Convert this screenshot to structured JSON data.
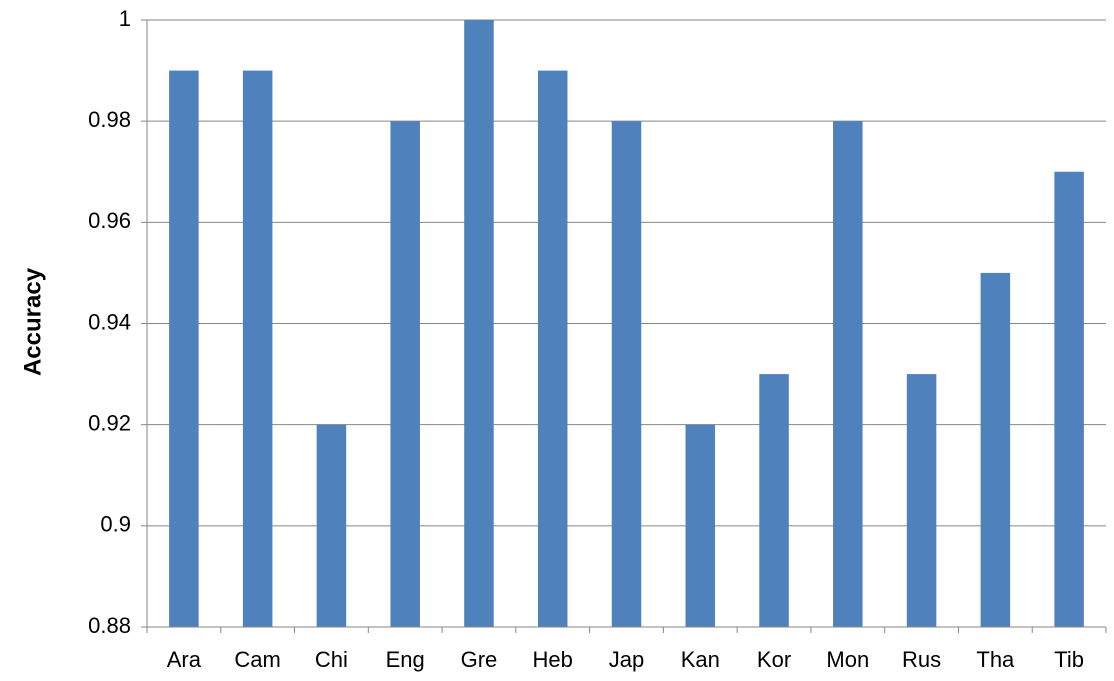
{
  "chart_data": {
    "type": "bar",
    "categories": [
      "Ara",
      "Cam",
      "Chi",
      "Eng",
      "Gre",
      "Heb",
      "Jap",
      "Kan",
      "Kor",
      "Mon",
      "Rus",
      "Tha",
      "Tib"
    ],
    "values": [
      0.99,
      0.99,
      0.92,
      0.98,
      1.0,
      0.99,
      0.98,
      0.92,
      0.93,
      0.98,
      0.93,
      0.95,
      0.97
    ],
    "ylabel": "Accuracy",
    "xlabel": "",
    "ylim": [
      0.88,
      1.0
    ],
    "yticks": [
      "0.88",
      "0.9",
      "0.92",
      "0.94",
      "0.96",
      "0.98",
      "1"
    ],
    "ytick_values": [
      0.88,
      0.9,
      0.92,
      0.94,
      0.96,
      0.98,
      1.0
    ],
    "grid": "horizontal",
    "legend": "none",
    "colors": {
      "bar": "#4f81bd",
      "grid": "#868686",
      "axis": "#868686"
    }
  }
}
